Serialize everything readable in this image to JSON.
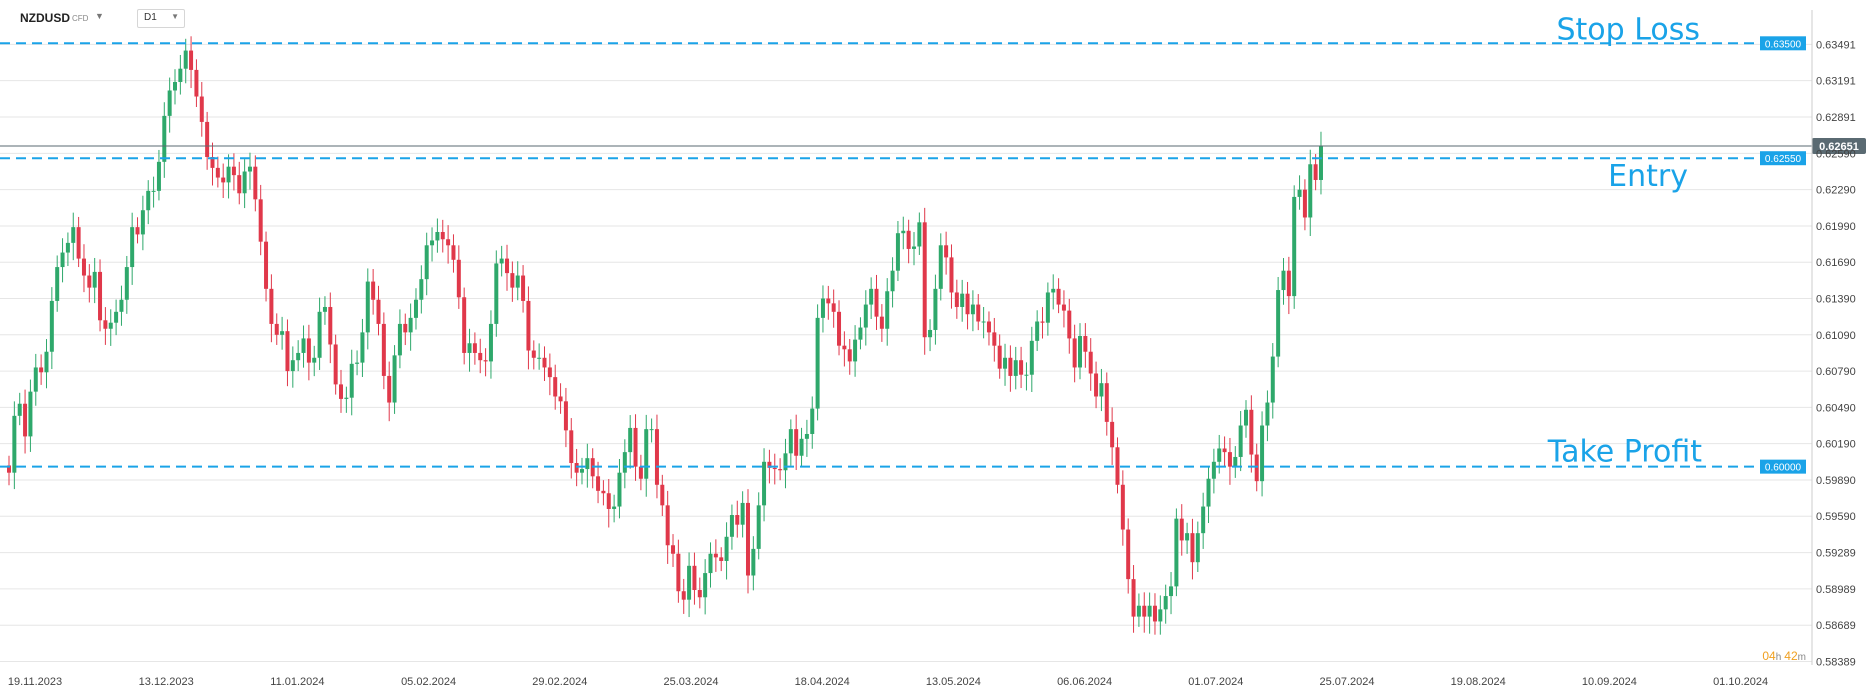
{
  "toolbar": {
    "symbol": "NZDUSD",
    "symbol_type": "CFD",
    "timeframe": "D1"
  },
  "icons": {
    "symbol_dropdown": "chevron-down-icon",
    "timeframe_dropdown": "chevron-down-icon"
  },
  "colors": {
    "up": "#2ea86b",
    "down": "#e0384a",
    "level_line": "#1aa3e8",
    "grid": "#e6e6e6",
    "price_line": "#5a6a72",
    "countdown": "#f0a020"
  },
  "chart_data": {
    "type": "candlestick",
    "y_ticks": [
      "0.63491",
      "0.63191",
      "0.62891",
      "0.62590",
      "0.62290",
      "0.61990",
      "0.61690",
      "0.61390",
      "0.61090",
      "0.60790",
      "0.60490",
      "0.60190",
      "0.59890",
      "0.59590",
      "0.59289",
      "0.58989",
      "0.58689",
      "0.58389"
    ],
    "x_ticks": [
      "19.11.2023",
      "13.12.2023",
      "11.01.2024",
      "05.02.2024",
      "29.02.2024",
      "25.03.2024",
      "18.04.2024",
      "13.05.2024",
      "06.06.2024",
      "01.07.2024",
      "25.07.2024",
      "19.08.2024",
      "10.09.2024",
      "01.10.2024"
    ],
    "ylim": [
      0.5836,
      0.6361
    ],
    "current_price": "0.62651",
    "levels": [
      {
        "name": "Stop Loss",
        "value": 0.635,
        "label": "0.63500"
      },
      {
        "name": "Entry",
        "value": 0.6255,
        "label": "0.62550"
      },
      {
        "name": "Take Profit",
        "value": 0.6,
        "label": "0.60000"
      }
    ],
    "countdown": {
      "hours": "04",
      "h_unit": "h",
      "minutes": "42",
      "m_unit": "m"
    },
    "closes": [
      0.5995,
      0.6042,
      0.6052,
      0.6025,
      0.6062,
      0.6082,
      0.6078,
      0.6095,
      0.6137,
      0.6165,
      0.6177,
      0.6185,
      0.6198,
      0.6172,
      0.6158,
      0.6148,
      0.6161,
      0.6121,
      0.6114,
      0.6119,
      0.6128,
      0.6138,
      0.6165,
      0.6198,
      0.6192,
      0.6212,
      0.6228,
      0.6228,
      0.6252,
      0.629,
      0.6311,
      0.6318,
      0.6329,
      0.6344,
      0.6328,
      0.6306,
      0.6285,
      0.6256,
      0.6247,
      0.6239,
      0.6235,
      0.6248,
      0.6241,
      0.6226,
      0.6244,
      0.6248,
      0.6221,
      0.6186,
      0.6147,
      0.6118,
      0.6109,
      0.6112,
      0.6079,
      0.6088,
      0.6094,
      0.6106,
      0.6086,
      0.609,
      0.6128,
      0.6132,
      0.6101,
      0.6068,
      0.6056,
      0.6057,
      0.6085,
      0.6086,
      0.6111,
      0.6153,
      0.6138,
      0.6118,
      0.6075,
      0.6053,
      0.6092,
      0.6118,
      0.6111,
      0.6123,
      0.6138,
      0.6155,
      0.6183,
      0.6187,
      0.6194,
      0.6188,
      0.6183,
      0.6171,
      0.614,
      0.6094,
      0.6102,
      0.6094,
      0.6088,
      0.6087,
      0.6118,
      0.6168,
      0.6172,
      0.616,
      0.6148,
      0.6158,
      0.6137,
      0.6096,
      0.609,
      0.609,
      0.6082,
      0.6074,
      0.6058,
      0.6054,
      0.603,
      0.6003,
      0.5995,
      0.5998,
      0.6007,
      0.5992,
      0.598,
      0.5978,
      0.5965,
      0.5967,
      0.5995,
      0.6012,
      0.6032,
      0.6,
      0.599,
      0.6031,
      0.6031,
      0.5985,
      0.5968,
      0.5935,
      0.5928,
      0.5897,
      0.589,
      0.5918,
      0.5898,
      0.5892,
      0.5912,
      0.5928,
      0.5925,
      0.5922,
      0.5942,
      0.596,
      0.5952,
      0.597,
      0.591,
      0.5932,
      0.5968,
      0.6004,
      0.5999,
      0.5998,
      0.5997,
      0.6011,
      0.6031,
      0.6009,
      0.6023,
      0.6027,
      0.6048,
      0.6123,
      0.6139,
      0.6135,
      0.6128,
      0.61,
      0.6097,
      0.6087,
      0.6105,
      0.6115,
      0.6134,
      0.6147,
      0.6124,
      0.6114,
      0.6145,
      0.6162,
      0.6193,
      0.6195,
      0.618,
      0.6182,
      0.6202,
      0.6107,
      0.6113,
      0.6147,
      0.6183,
      0.6173,
      0.6144,
      0.6132,
      0.6143,
      0.6126,
      0.6134,
      0.612,
      0.612,
      0.6111,
      0.61,
      0.6081,
      0.609,
      0.6075,
      0.6088,
      0.6076,
      0.6076,
      0.6104,
      0.612,
      0.6119,
      0.6144,
      0.6147,
      0.6134,
      0.6129,
      0.6106,
      0.6082,
      0.6108,
      0.6095,
      0.6077,
      0.6058,
      0.6069,
      0.6037,
      0.6016,
      0.5985,
      0.5948,
      0.5907,
      0.5876,
      0.5885,
      0.5876,
      0.5885,
      0.5872,
      0.5882,
      0.5893,
      0.5901,
      0.5957,
      0.5939,
      0.5945,
      0.5921,
      0.5945,
      0.5967,
      0.599,
      0.6004,
      0.6015,
      0.6012,
      0.6,
      0.6008,
      0.6034,
      0.6047,
      0.601,
      0.5988,
      0.6034,
      0.6053,
      0.6091,
      0.6146,
      0.6162,
      0.6141,
      0.6223,
      0.6229,
      0.6206,
      0.625,
      0.6237,
      0.6265
    ]
  }
}
